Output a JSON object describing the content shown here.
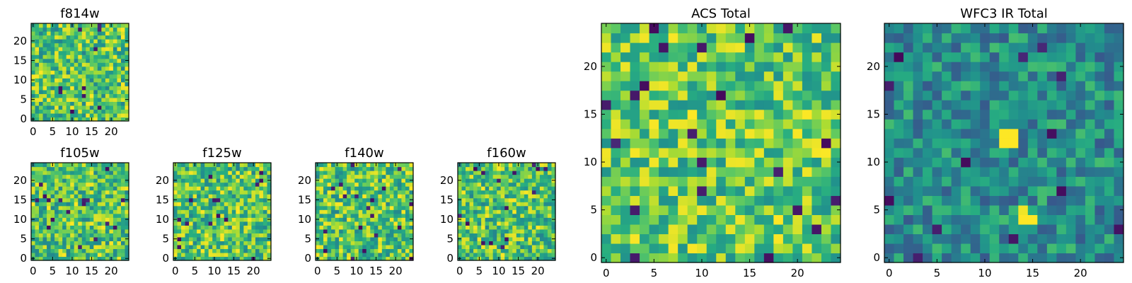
{
  "chart_data": [
    {
      "type": "heatmap",
      "title": "f814w",
      "grid_size": [
        25,
        25
      ],
      "xlim": [
        -0.5,
        24.5
      ],
      "ylim": [
        -0.5,
        24.5
      ],
      "xticks": [
        "0",
        "5",
        "10",
        "15",
        "20"
      ],
      "yticks": [
        "0",
        "5",
        "10",
        "15",
        "20"
      ],
      "colormap": "viridis",
      "seed": 11,
      "hot_spots": []
    },
    {
      "type": "heatmap",
      "title": "f105w",
      "grid_size": [
        25,
        25
      ],
      "xlim": [
        -0.5,
        24.5
      ],
      "ylim": [
        -0.5,
        24.5
      ],
      "xticks": [
        "0",
        "5",
        "10",
        "15",
        "20"
      ],
      "yticks": [
        "0",
        "5",
        "10",
        "15",
        "20"
      ],
      "colormap": "viridis",
      "seed": 23,
      "hot_spots": []
    },
    {
      "type": "heatmap",
      "title": "f125w",
      "grid_size": [
        25,
        25
      ],
      "xlim": [
        -0.5,
        24.5
      ],
      "ylim": [
        -0.5,
        24.5
      ],
      "xticks": [
        "0",
        "5",
        "10",
        "15",
        "20"
      ],
      "yticks": [
        "0",
        "5",
        "10",
        "15",
        "20"
      ],
      "colormap": "viridis",
      "seed": 37,
      "hot_spots": []
    },
    {
      "type": "heatmap",
      "title": "f140w",
      "grid_size": [
        25,
        25
      ],
      "xlim": [
        -0.5,
        24.5
      ],
      "ylim": [
        -0.5,
        24.5
      ],
      "xticks": [
        "0",
        "5",
        "10",
        "15",
        "20"
      ],
      "yticks": [
        "0",
        "5",
        "10",
        "15",
        "20"
      ],
      "colormap": "viridis",
      "seed": 41,
      "hot_spots": []
    },
    {
      "type": "heatmap",
      "title": "f160w",
      "grid_size": [
        25,
        25
      ],
      "xlim": [
        -0.5,
        24.5
      ],
      "ylim": [
        -0.5,
        24.5
      ],
      "xticks": [
        "0",
        "5",
        "10",
        "15",
        "20"
      ],
      "yticks": [
        "0",
        "5",
        "10",
        "15",
        "20"
      ],
      "colormap": "viridis",
      "seed": 53,
      "hot_spots": []
    },
    {
      "type": "heatmap",
      "title": "ACS Total",
      "grid_size": [
        25,
        25
      ],
      "xlim": [
        -0.5,
        24.5
      ],
      "ylim": [
        -0.5,
        24.5
      ],
      "xticks": [
        "0",
        "5",
        "10",
        "15",
        "20"
      ],
      "yticks": [
        "0",
        "5",
        "10",
        "15",
        "20"
      ],
      "colormap": "viridis",
      "seed": 67,
      "hot_spots": []
    },
    {
      "type": "heatmap",
      "title": "WFC3 IR Total",
      "grid_size": [
        25,
        25
      ],
      "xlim": [
        -0.5,
        24.5
      ],
      "ylim": [
        -0.5,
        24.5
      ],
      "xticks": [
        "0",
        "5",
        "10",
        "15",
        "20"
      ],
      "yticks": [
        "0",
        "5",
        "10",
        "15",
        "20"
      ],
      "colormap": "viridis",
      "seed": 79,
      "hot_spots": [
        {
          "x": 12,
          "y": 13,
          "value": 1.0
        },
        {
          "x": 13,
          "y": 13,
          "value": 1.0
        },
        {
          "x": 12,
          "y": 12,
          "value": 1.0
        },
        {
          "x": 13,
          "y": 12,
          "value": 1.0
        },
        {
          "x": 14,
          "y": 5,
          "value": 0.98
        },
        {
          "x": 14,
          "y": 4,
          "value": 1.0
        },
        {
          "x": 15,
          "y": 4,
          "value": 1.0
        }
      ]
    }
  ]
}
